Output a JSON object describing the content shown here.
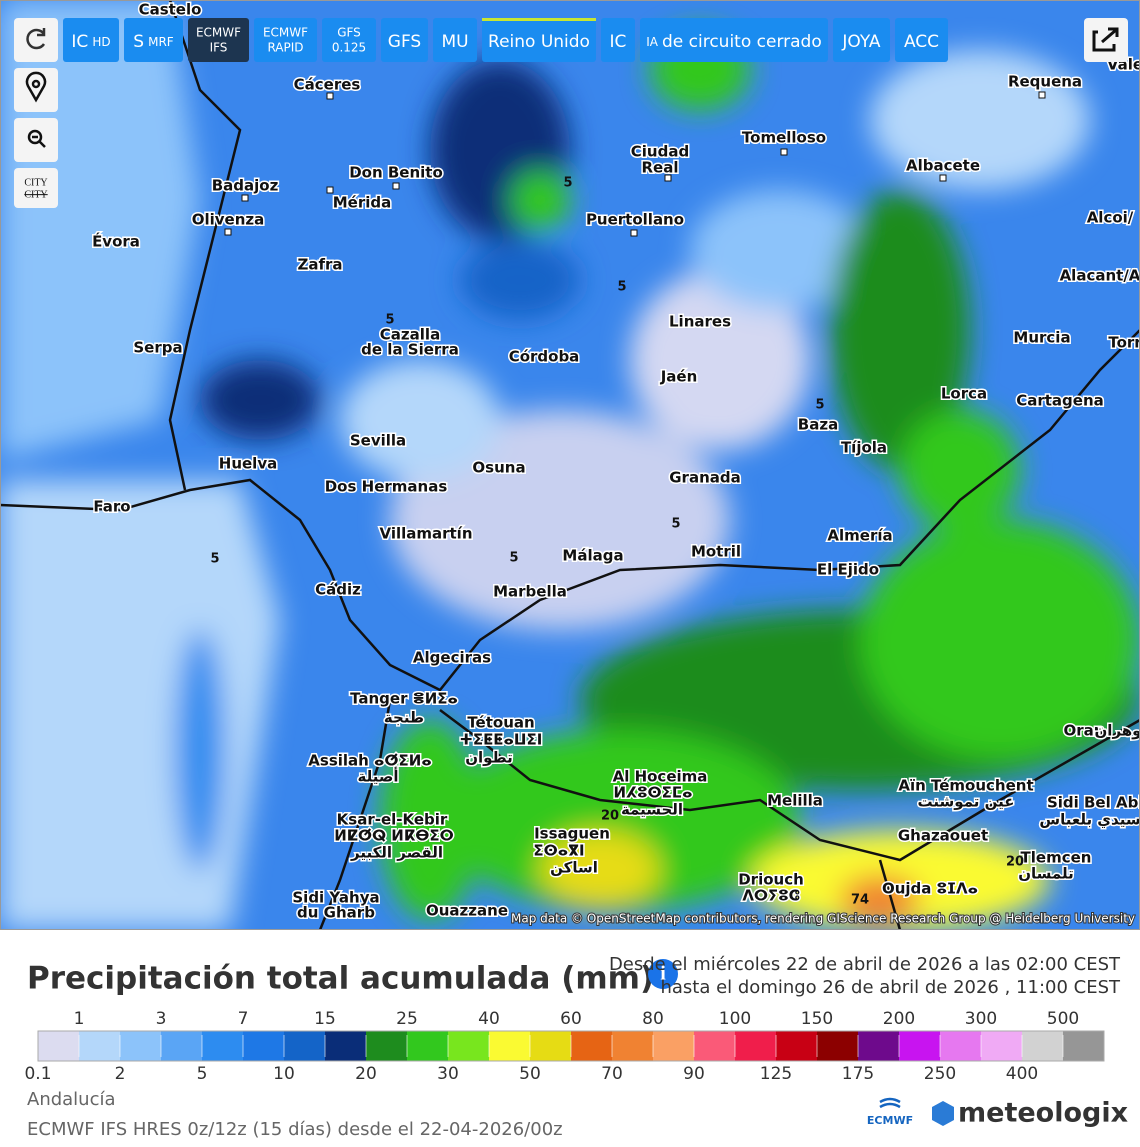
{
  "toolbar": [
    {
      "main": "IC",
      "sub": "HD"
    },
    {
      "main": "S",
      "sub": "MRF"
    },
    {
      "main": "ECMWF",
      "sub": "IFS"
    },
    {
      "main": "ECMWF",
      "sub": "RAPID"
    },
    {
      "main": "GFS",
      "sub": "0.125"
    },
    {
      "main": "GFS"
    },
    {
      "main": "MU"
    },
    {
      "main": "Reino Unido"
    },
    {
      "main": "IC"
    },
    {
      "sub": "IA",
      "main": "de circuito cerrado"
    },
    {
      "main": "JOYA"
    },
    {
      "main": "ACC"
    }
  ],
  "side_tools": {
    "city_top": "CITY",
    "city_bottom": "CITY"
  },
  "map": {
    "labels": [
      "Castelo",
      "Cáceres",
      "Ciudad",
      "Real",
      "Tomelloso",
      "Requena",
      "Badajoz",
      "Don Benito",
      "Mérida",
      "Olivenza",
      "Puertollano",
      "Albacete",
      "Alcoi/",
      "Évora",
      "Zafra",
      "Alacant/A",
      "Linares",
      "Cazalla",
      "de la Sierra",
      "Córdoba",
      "Murcia",
      "Serpa",
      "Jaén",
      "Lorca",
      "Cartagena",
      "Baza",
      "Tíjola",
      "Sevilla",
      "Huelva",
      "Osuna",
      "Granada",
      "Dos Hermanas",
      "Faro",
      "Villamartín",
      "Almería",
      "Motril",
      "Málaga",
      "El Ejido",
      "Cádiz",
      "Marbella",
      "Algeciras",
      "Tanger ⴻⵍⵉⴰ",
      "طنجة",
      "Tétouan",
      "ⵜⵉⵟⵟⴰⵡⵉⵏ",
      "تطوان",
      "Assilah ⴰⵚⵉⵍⴰ",
      "أصيلة",
      "Al Hoceima",
      "ⵍⵃⵓⵙⵉⵎⴰ",
      "الحسيمة",
      "Melilla",
      "Oran",
      "وهران",
      "Aïn Témouchent",
      "عين تموشنت",
      "Sidi Bel Abb",
      "سيدي بلعباس",
      "Ghazaouet",
      "Tlemcen",
      "تلمسان",
      "Ksar-el-Kebir",
      "ⵍⵇⵚⵕ ⵍⴽⴱⵉⵔ",
      "القصر الكبير",
      "Issaguen",
      "ⵉⵙⴰⴳⵏ",
      "اساكن",
      "Driouch",
      "ⴷⵔⵢⵓⵛ",
      "Oujda ⵓⵊⴷⴰ",
      "Sidi Yahya",
      "du Gharb",
      "Ouazzane",
      "Torr",
      "Vale"
    ],
    "contours": [
      "5",
      "5",
      "5",
      "5",
      "5",
      "5",
      "5",
      "20",
      "20",
      "74"
    ],
    "attribution": "Map data © OpenStreetMap contributors, rendering GIScience Research Group @ Heidelberg University"
  },
  "legend": {
    "title": "Precipitación total acumulada (mm)",
    "from": "Desde el miércoles 22 de abril de 2026 a  las 02:00  CEST",
    "to": "hasta el domingo 26 de abril de 2026 ,  11:00  CEST",
    "top_labels": [
      1,
      3,
      7,
      15,
      25,
      40,
      60,
      80,
      100,
      150,
      200,
      300,
      500
    ],
    "bottom_labels": [
      0.1,
      2,
      5,
      10,
      20,
      30,
      50,
      70,
      90,
      125,
      175,
      250,
      400
    ],
    "colors": [
      "#dcdcf0",
      "#b4d7fa",
      "#8cc3fa",
      "#5aa5f5",
      "#2d8cf0",
      "#1e78e6",
      "#1464c8",
      "#0a2d78",
      "#1e8c1e",
      "#32c81e",
      "#78e61e",
      "#fafa32",
      "#e6dc14",
      "#e66414",
      "#f08232",
      "#faa064",
      "#fa5a78",
      "#f01e4b",
      "#c80014",
      "#8c0000",
      "#6e0a8c",
      "#c814f0",
      "#e678f0",
      "#f0aaf5",
      "#d2d2d2",
      "#969696"
    ]
  },
  "footer": {
    "region": "Andalucía",
    "model": "ECMWF IFS HRES 0z/12z (15 días) desde el 22-04-2026/00z",
    "logo_ecmwf": "ECMWF",
    "logo_brand": "meteologix"
  }
}
